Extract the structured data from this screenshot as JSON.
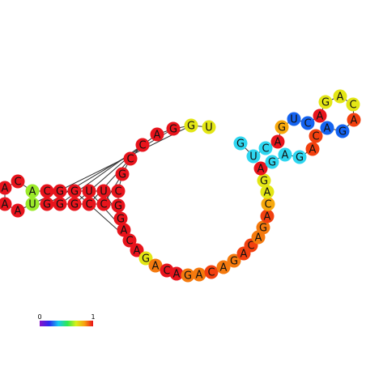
{
  "colors": {
    "red": "#e8141c",
    "orange_red": "#f2400f",
    "orange": "#f57a0e",
    "amber": "#f7a80c",
    "yellow": "#e3e615",
    "lime": "#9cea2a",
    "cyan": "#2ed6f0",
    "blue": "#1463f0",
    "backbone": "#333333"
  },
  "legend": {
    "min_label": "0",
    "max_label": "1"
  },
  "bases": [
    {
      "l": "U",
      "c": "yellow"
    },
    {
      "l": "G",
      "c": "yellow"
    },
    {
      "l": "G",
      "c": "red"
    },
    {
      "l": "A",
      "c": "red"
    },
    {
      "l": "C",
      "c": "red"
    },
    {
      "l": "C",
      "c": "red"
    },
    {
      "l": "G",
      "c": "red"
    },
    {
      "l": "C",
      "c": "red"
    },
    {
      "l": "U",
      "c": "red"
    },
    {
      "l": "U",
      "c": "red"
    },
    {
      "l": "G",
      "c": "red"
    },
    {
      "l": "G",
      "c": "red"
    },
    {
      "l": "C",
      "c": "red"
    },
    {
      "l": "A",
      "c": "lime"
    },
    {
      "l": "C",
      "c": "red"
    },
    {
      "l": "A",
      "c": "red"
    },
    {
      "l": "A",
      "c": "red"
    },
    {
      "l": "A",
      "c": "red"
    },
    {
      "l": "U",
      "c": "lime"
    },
    {
      "l": "G",
      "c": "red"
    },
    {
      "l": "G",
      "c": "red"
    },
    {
      "l": "G",
      "c": "red"
    },
    {
      "l": "C",
      "c": "red"
    },
    {
      "l": "C",
      "c": "red"
    },
    {
      "l": "G",
      "c": "red"
    },
    {
      "l": "G",
      "c": "red"
    },
    {
      "l": "A",
      "c": "red"
    },
    {
      "l": "C",
      "c": "red"
    },
    {
      "l": "A",
      "c": "red"
    },
    {
      "l": "G",
      "c": "yellow"
    },
    {
      "l": "A",
      "c": "orange"
    },
    {
      "l": "C",
      "c": "red"
    },
    {
      "l": "A",
      "c": "red"
    },
    {
      "l": "G",
      "c": "orange"
    },
    {
      "l": "A",
      "c": "orange"
    },
    {
      "l": "C",
      "c": "orange_red"
    },
    {
      "l": "A",
      "c": "orange"
    },
    {
      "l": "G",
      "c": "orange"
    },
    {
      "l": "A",
      "c": "orange_red"
    },
    {
      "l": "C",
      "c": "orange_red"
    },
    {
      "l": "A",
      "c": "orange"
    },
    {
      "l": "G",
      "c": "orange"
    },
    {
      "l": "A",
      "c": "orange_red"
    },
    {
      "l": "C",
      "c": "amber"
    },
    {
      "l": "A",
      "c": "yellow"
    },
    {
      "l": "G",
      "c": "yellow"
    },
    {
      "l": "A",
      "c": "red"
    },
    {
      "l": "G",
      "c": "cyan"
    },
    {
      "l": "A",
      "c": "cyan"
    },
    {
      "l": "G",
      "c": "cyan"
    },
    {
      "l": "A",
      "c": "orange_red"
    },
    {
      "l": "C",
      "c": "orange_red"
    },
    {
      "l": "A",
      "c": "blue"
    },
    {
      "l": "G",
      "c": "blue"
    },
    {
      "l": "A",
      "c": "orange_red"
    },
    {
      "l": "C",
      "c": "yellow"
    },
    {
      "l": "A",
      "c": "yellow"
    },
    {
      "l": "G",
      "c": "yellow"
    },
    {
      "l": "A",
      "c": "red"
    },
    {
      "l": "C",
      "c": "blue"
    },
    {
      "l": "U",
      "c": "blue"
    },
    {
      "l": "G",
      "c": "amber"
    },
    {
      "l": "A",
      "c": "red"
    },
    {
      "l": "C",
      "c": "cyan"
    },
    {
      "l": "U",
      "c": "cyan"
    },
    {
      "l": "G",
      "c": "cyan"
    },
    {
      "l": "A",
      "c": "red"
    }
  ],
  "pairs": [
    [
      10,
      27
    ],
    [
      9,
      26
    ],
    [
      8,
      25
    ],
    [
      7,
      24
    ],
    [
      6,
      23
    ],
    [
      5,
      22
    ],
    [
      4,
      21
    ],
    [
      3,
      20
    ],
    [
      2,
      19
    ],
    [
      1,
      18
    ]
  ]
}
